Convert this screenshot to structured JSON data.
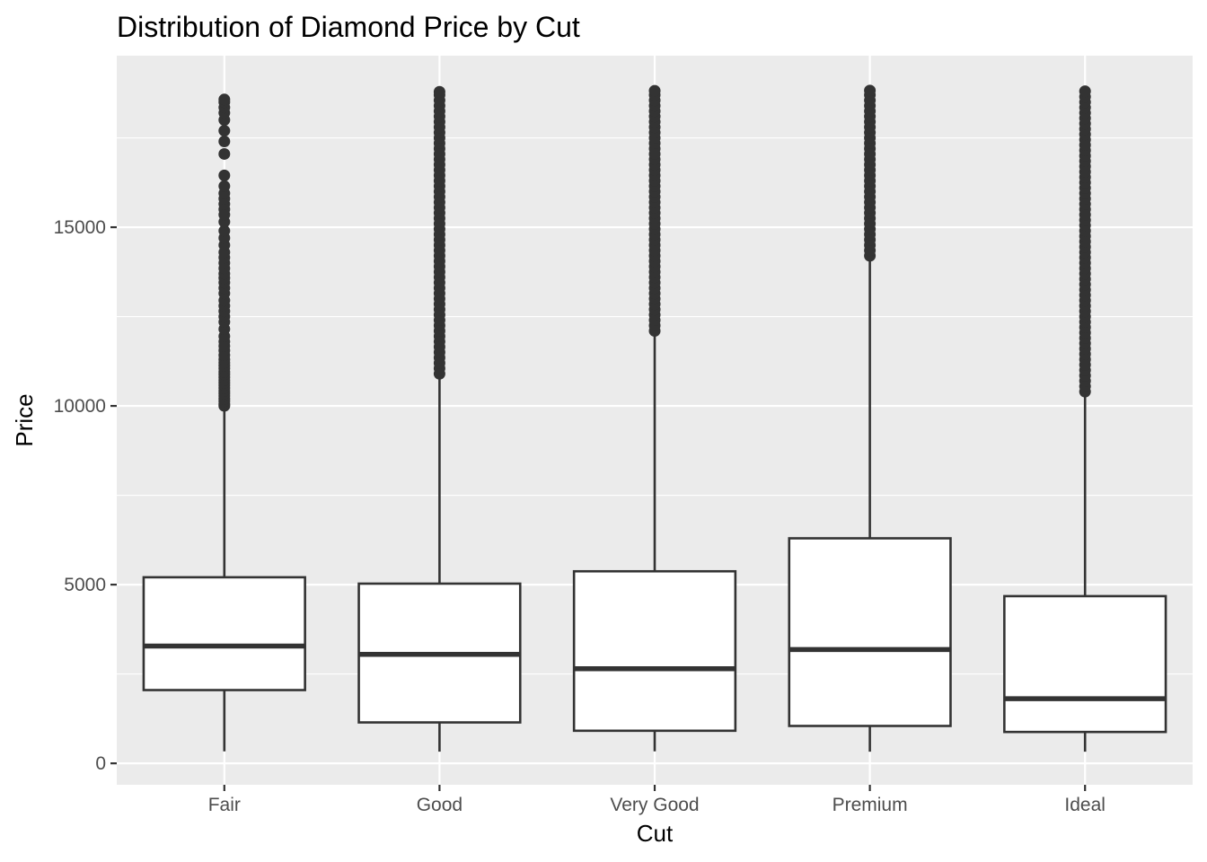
{
  "chart_data": {
    "type": "boxplot",
    "title": "Distribution of Diamond Price by Cut",
    "xlabel": "Cut",
    "ylabel": "Price",
    "categories": [
      "Fair",
      "Good",
      "Very Good",
      "Premium",
      "Ideal"
    ],
    "ylim": [
      -600,
      19800
    ],
    "yticks": [
      0,
      5000,
      10000,
      15000
    ],
    "ytick_labels": [
      "0",
      "5000",
      "10000",
      "15000"
    ],
    "grid": true,
    "legend": "none",
    "boxes": [
      {
        "category": "Fair",
        "whisker_low": 337,
        "q1": 2050,
        "median": 3282,
        "q3": 5206,
        "whisker_high": 9950,
        "outliers": [
          10000,
          10050,
          10130,
          10200,
          10280,
          10350,
          10420,
          10500,
          10580,
          10650,
          10720,
          10800,
          10880,
          10950,
          11050,
          11130,
          11210,
          11300,
          11420,
          11550,
          11680,
          11800,
          11950,
          12150,
          12350,
          12500,
          12650,
          12800,
          12950,
          13150,
          13300,
          13450,
          13580,
          13700,
          13850,
          14000,
          14150,
          14300,
          14500,
          14700,
          14900,
          15150,
          15350,
          15500,
          15650,
          15800,
          15950,
          16150,
          16450,
          17050,
          17400,
          17700,
          18000,
          18200,
          18350,
          18500,
          18574
        ]
      },
      {
        "category": "Good",
        "whisker_low": 327,
        "q1": 1145,
        "median": 3050,
        "q3": 5028,
        "whisker_high": 10850,
        "outliers": [
          10900,
          11050,
          11200,
          11350,
          11500,
          11650,
          11800,
          11950,
          12100,
          12250,
          12400,
          12550,
          12700,
          12850,
          13000,
          13150,
          13300,
          13450,
          13600,
          13750,
          13900,
          14050,
          14200,
          14350,
          14500,
          14650,
          14800,
          14950,
          15100,
          15250,
          15400,
          15550,
          15700,
          15850,
          16000,
          16150,
          16300,
          16450,
          16600,
          16750,
          16900,
          17050,
          17200,
          17350,
          17500,
          17650,
          17800,
          17950,
          18100,
          18250,
          18400,
          18550,
          18700,
          18788
        ]
      },
      {
        "category": "Very Good",
        "whisker_low": 336,
        "q1": 912,
        "median": 2648,
        "q3": 5373,
        "whisker_high": 12000,
        "outliers": [
          12100,
          12250,
          12400,
          12550,
          12700,
          12850,
          13000,
          13150,
          13300,
          13450,
          13600,
          13750,
          13900,
          14050,
          14200,
          14350,
          14500,
          14650,
          14800,
          14950,
          15100,
          15250,
          15400,
          15550,
          15700,
          15850,
          16000,
          16150,
          16300,
          16450,
          16600,
          16750,
          16900,
          17050,
          17200,
          17350,
          17500,
          17650,
          17800,
          17950,
          18100,
          18250,
          18400,
          18550,
          18700,
          18818
        ]
      },
      {
        "category": "Premium",
        "whisker_low": 326,
        "q1": 1046,
        "median": 3185,
        "q3": 6296,
        "whisker_high": 14100,
        "outliers": [
          14200,
          14350,
          14500,
          14650,
          14800,
          14950,
          15100,
          15250,
          15400,
          15550,
          15700,
          15850,
          16000,
          16150,
          16300,
          16450,
          16600,
          16750,
          16900,
          17050,
          17200,
          17350,
          17500,
          17650,
          17800,
          17950,
          18100,
          18250,
          18400,
          18550,
          18700,
          18823
        ]
      },
      {
        "category": "Ideal",
        "whisker_low": 326,
        "q1": 878,
        "median": 1810,
        "q3": 4678,
        "whisker_high": 10300,
        "outliers": [
          10400,
          10550,
          10700,
          10850,
          11000,
          11150,
          11300,
          11450,
          11600,
          11750,
          11900,
          12050,
          12200,
          12350,
          12500,
          12650,
          12800,
          12950,
          13100,
          13250,
          13400,
          13550,
          13700,
          13850,
          14000,
          14150,
          14300,
          14450,
          14600,
          14750,
          14900,
          15050,
          15200,
          15350,
          15500,
          15650,
          15800,
          15950,
          16100,
          16250,
          16400,
          16550,
          16700,
          16850,
          17000,
          17150,
          17300,
          17450,
          17600,
          17750,
          17900,
          18050,
          18200,
          18350,
          18500,
          18650,
          18806
        ]
      }
    ]
  }
}
